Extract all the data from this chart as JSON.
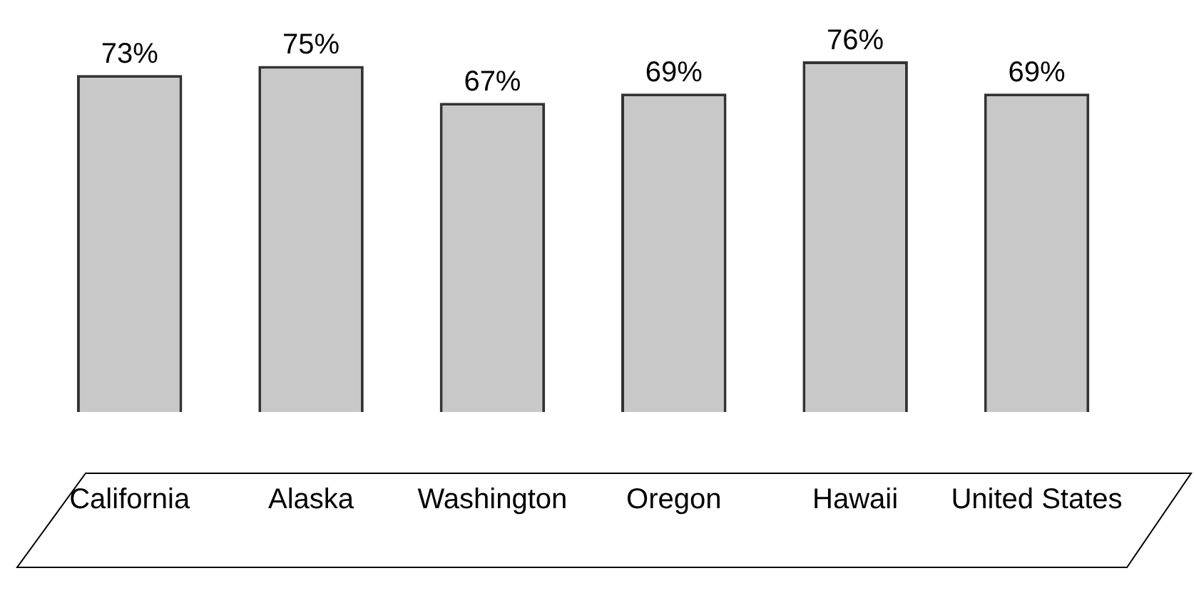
{
  "chart_data": {
    "type": "bar",
    "categories": [
      "California",
      "Alaska",
      "Washington",
      "Oregon",
      "Hawaii",
      "United States"
    ],
    "values": [
      73,
      75,
      67,
      69,
      76,
      69
    ],
    "value_labels": [
      "73%",
      "75%",
      "67%",
      "69%",
      "76%",
      "69%"
    ],
    "color": "#c8c8c8",
    "grid": false,
    "legend": false
  }
}
